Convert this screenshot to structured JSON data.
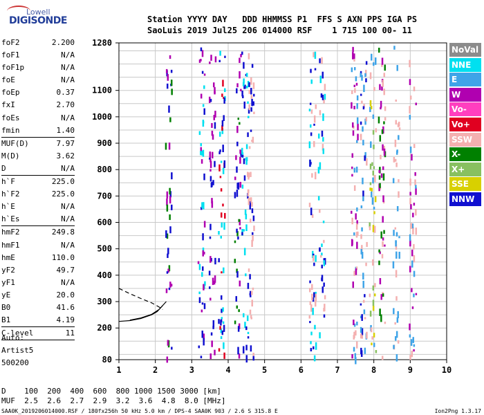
{
  "logo": {
    "top": "Lowell",
    "bottom": "DIGISONDE"
  },
  "header": {
    "line1": "Station YYYY DAY   DDD HHMMSS P1  FFS S AXN PPS IGA PS",
    "line2": "SaoLuis 2019 Jul25 206 014000 RSF    1 715 100 00- 11"
  },
  "params": [
    {
      "name": "foF2",
      "value": "2.200"
    },
    {
      "name": "foF1",
      "value": "N/A"
    },
    {
      "name": "foF1p",
      "value": "N/A"
    },
    {
      "name": "foE",
      "value": "N/A"
    },
    {
      "name": "foEp",
      "value": "0.37"
    },
    {
      "name": "fxI",
      "value": "2.70"
    },
    {
      "name": "foEs",
      "value": "N/A"
    },
    {
      "name": "fmin",
      "value": "1.40"
    },
    {
      "sep": true
    },
    {
      "name": "MUF(D)",
      "value": "7.97"
    },
    {
      "name": "M(D)",
      "value": "3.62"
    },
    {
      "name": "D",
      "value": "N/A"
    },
    {
      "sep": true
    },
    {
      "name": "h`F",
      "value": "225.0"
    },
    {
      "name": "h`F2",
      "value": "225.0"
    },
    {
      "name": "h`E",
      "value": "N/A"
    },
    {
      "name": "h`Es",
      "value": "N/A"
    },
    {
      "sep": true
    },
    {
      "name": "hmF2",
      "value": "249.8"
    },
    {
      "name": "hmF1",
      "value": "N/A"
    },
    {
      "name": "hmE",
      "value": "110.0"
    },
    {
      "name": "yF2",
      "value": "49.7"
    },
    {
      "name": "yF1",
      "value": "N/A"
    },
    {
      "name": "yE",
      "value": "20.0"
    },
    {
      "name": "B0",
      "value": "41.6"
    },
    {
      "name": "B1",
      "value": "4.19"
    },
    {
      "sep": true
    },
    {
      "name": "C-level",
      "value": "11"
    },
    {
      "sep": true
    }
  ],
  "autoscale": {
    "line1": "Auto:",
    "line2": "Artist5",
    "line3": "500200"
  },
  "legend": [
    {
      "label": "NoVal",
      "color": "#8c8c8c"
    },
    {
      "label": "NNE",
      "color": "#00e0f0"
    },
    {
      "label": "E",
      "color": "#3fa4e8"
    },
    {
      "label": "W",
      "color": "#b000b0"
    },
    {
      "label": "Vo-",
      "color": "#ff3fbf"
    },
    {
      "label": "Vo+",
      "color": "#e00020"
    },
    {
      "label": "SSW",
      "color": "#f4b0b0"
    },
    {
      "label": "X-",
      "color": "#008000"
    },
    {
      "label": "X+",
      "color": "#88c060"
    },
    {
      "label": "SSE",
      "color": "#d8d000"
    },
    {
      "label": "NNW",
      "color": "#1010d0"
    }
  ],
  "bottom": {
    "line1": "D    100  200  400  600  800 1000 1500 3000 [km]",
    "line2": "MUF  2.5  2.6  2.7  2.9  3.2  3.6  4.8  8.0 [MHz]"
  },
  "footer": {
    "left": "SAA0K_2019206014000.RSF / 180fx256h 50 kHz 5.0 km / DPS-4 SAA0K 903 / 2.6 S 315.8 E",
    "right": "Ion2Png 1.3.17"
  },
  "chart_data": {
    "type": "scatter",
    "xlim": [
      1,
      10
    ],
    "ylim": [
      80,
      1280
    ],
    "x_ticks": [
      1,
      2,
      3,
      4,
      5,
      6,
      7,
      8,
      9,
      10
    ],
    "y_ticks": [
      80,
      200,
      300,
      400,
      500,
      600,
      700,
      800,
      900,
      1000,
      1100,
      1280
    ],
    "grid": true,
    "traces": [
      {
        "name": "trace-o",
        "x": [
          1.0,
          1.3,
          1.6,
          1.9,
          2.05,
          2.2
        ],
        "y": [
          225,
          228,
          236,
          250,
          262,
          285
        ]
      },
      {
        "name": "trace-x",
        "x": [
          1.3,
          1.6,
          1.9,
          2.1,
          2.3
        ],
        "y": [
          230,
          238,
          252,
          270,
          300
        ]
      },
      {
        "name": "trace-dashed",
        "x": [
          1.0,
          1.3,
          1.6,
          1.9,
          2.1,
          2.2
        ],
        "y": [
          350,
          330,
          312,
          295,
          280,
          270
        ]
      }
    ]
  }
}
